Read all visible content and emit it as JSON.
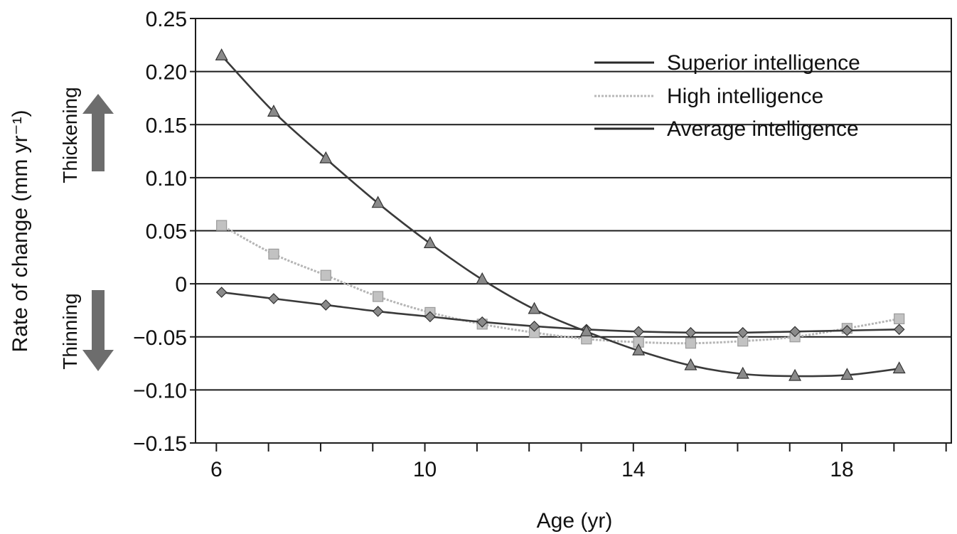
{
  "chart_data": {
    "type": "line",
    "xlabel": "Age (yr)",
    "ylabel": "Rate of change (mm yr⁻¹)",
    "xlim": [
      5.6,
      20.1
    ],
    "ylim": [
      -0.15,
      0.25
    ],
    "xticks": [
      6,
      7,
      8,
      9,
      10,
      11,
      12,
      13,
      14,
      15,
      16,
      17,
      18,
      19,
      20
    ],
    "xtick_labels": [
      "6",
      "",
      "",
      "",
      "10",
      "",
      "",
      "",
      "14",
      "",
      "",
      "",
      "18",
      "",
      ""
    ],
    "yticks": [
      0.25,
      0.2,
      0.15,
      0.1,
      0.05,
      0,
      -0.05,
      -0.1,
      -0.15
    ],
    "ytick_labels": [
      "0.25",
      "0.20",
      "0.15",
      "0.10",
      "0.05",
      "0",
      "−0.05",
      "−0.10",
      "−0.15"
    ],
    "grid": true,
    "legend_position": "top-right",
    "annotations": {
      "thickening": "Thickening",
      "thinning": "Thinning"
    },
    "series": [
      {
        "name": "Superior intelligence",
        "marker": "triangle",
        "color": "#3a3a3a",
        "marker_color": "#8a8a8a",
        "x": [
          6.1,
          7.1,
          8.1,
          9.1,
          10.1,
          11.1,
          12.1,
          13.1,
          14.1,
          15.1,
          16.1,
          17.1,
          18.1,
          19.1
        ],
        "y": [
          0.215,
          0.162,
          0.118,
          0.076,
          0.038,
          0.004,
          -0.024,
          -0.045,
          -0.063,
          -0.077,
          -0.085,
          -0.087,
          -0.086,
          -0.08
        ]
      },
      {
        "name": "High intelligence",
        "marker": "square",
        "color": "#b5b5b5",
        "marker_color": "#c2c2c2",
        "x": [
          6.1,
          7.1,
          8.1,
          9.1,
          10.1,
          11.1,
          12.1,
          13.1,
          14.1,
          15.1,
          16.1,
          17.1,
          18.1,
          19.1
        ],
        "y": [
          0.055,
          0.028,
          0.008,
          -0.012,
          -0.027,
          -0.038,
          -0.046,
          -0.052,
          -0.055,
          -0.056,
          -0.054,
          -0.05,
          -0.042,
          -0.033
        ]
      },
      {
        "name": "Average intelligence",
        "marker": "diamond",
        "color": "#3a3a3a",
        "marker_color": "#8a8a8a",
        "x": [
          6.1,
          7.1,
          8.1,
          9.1,
          10.1,
          11.1,
          12.1,
          13.1,
          14.1,
          15.1,
          16.1,
          17.1,
          18.1,
          19.1
        ],
        "y": [
          -0.008,
          -0.014,
          -0.02,
          -0.026,
          -0.031,
          -0.036,
          -0.04,
          -0.043,
          -0.045,
          -0.046,
          -0.046,
          -0.045,
          -0.044,
          -0.043
        ]
      }
    ]
  }
}
